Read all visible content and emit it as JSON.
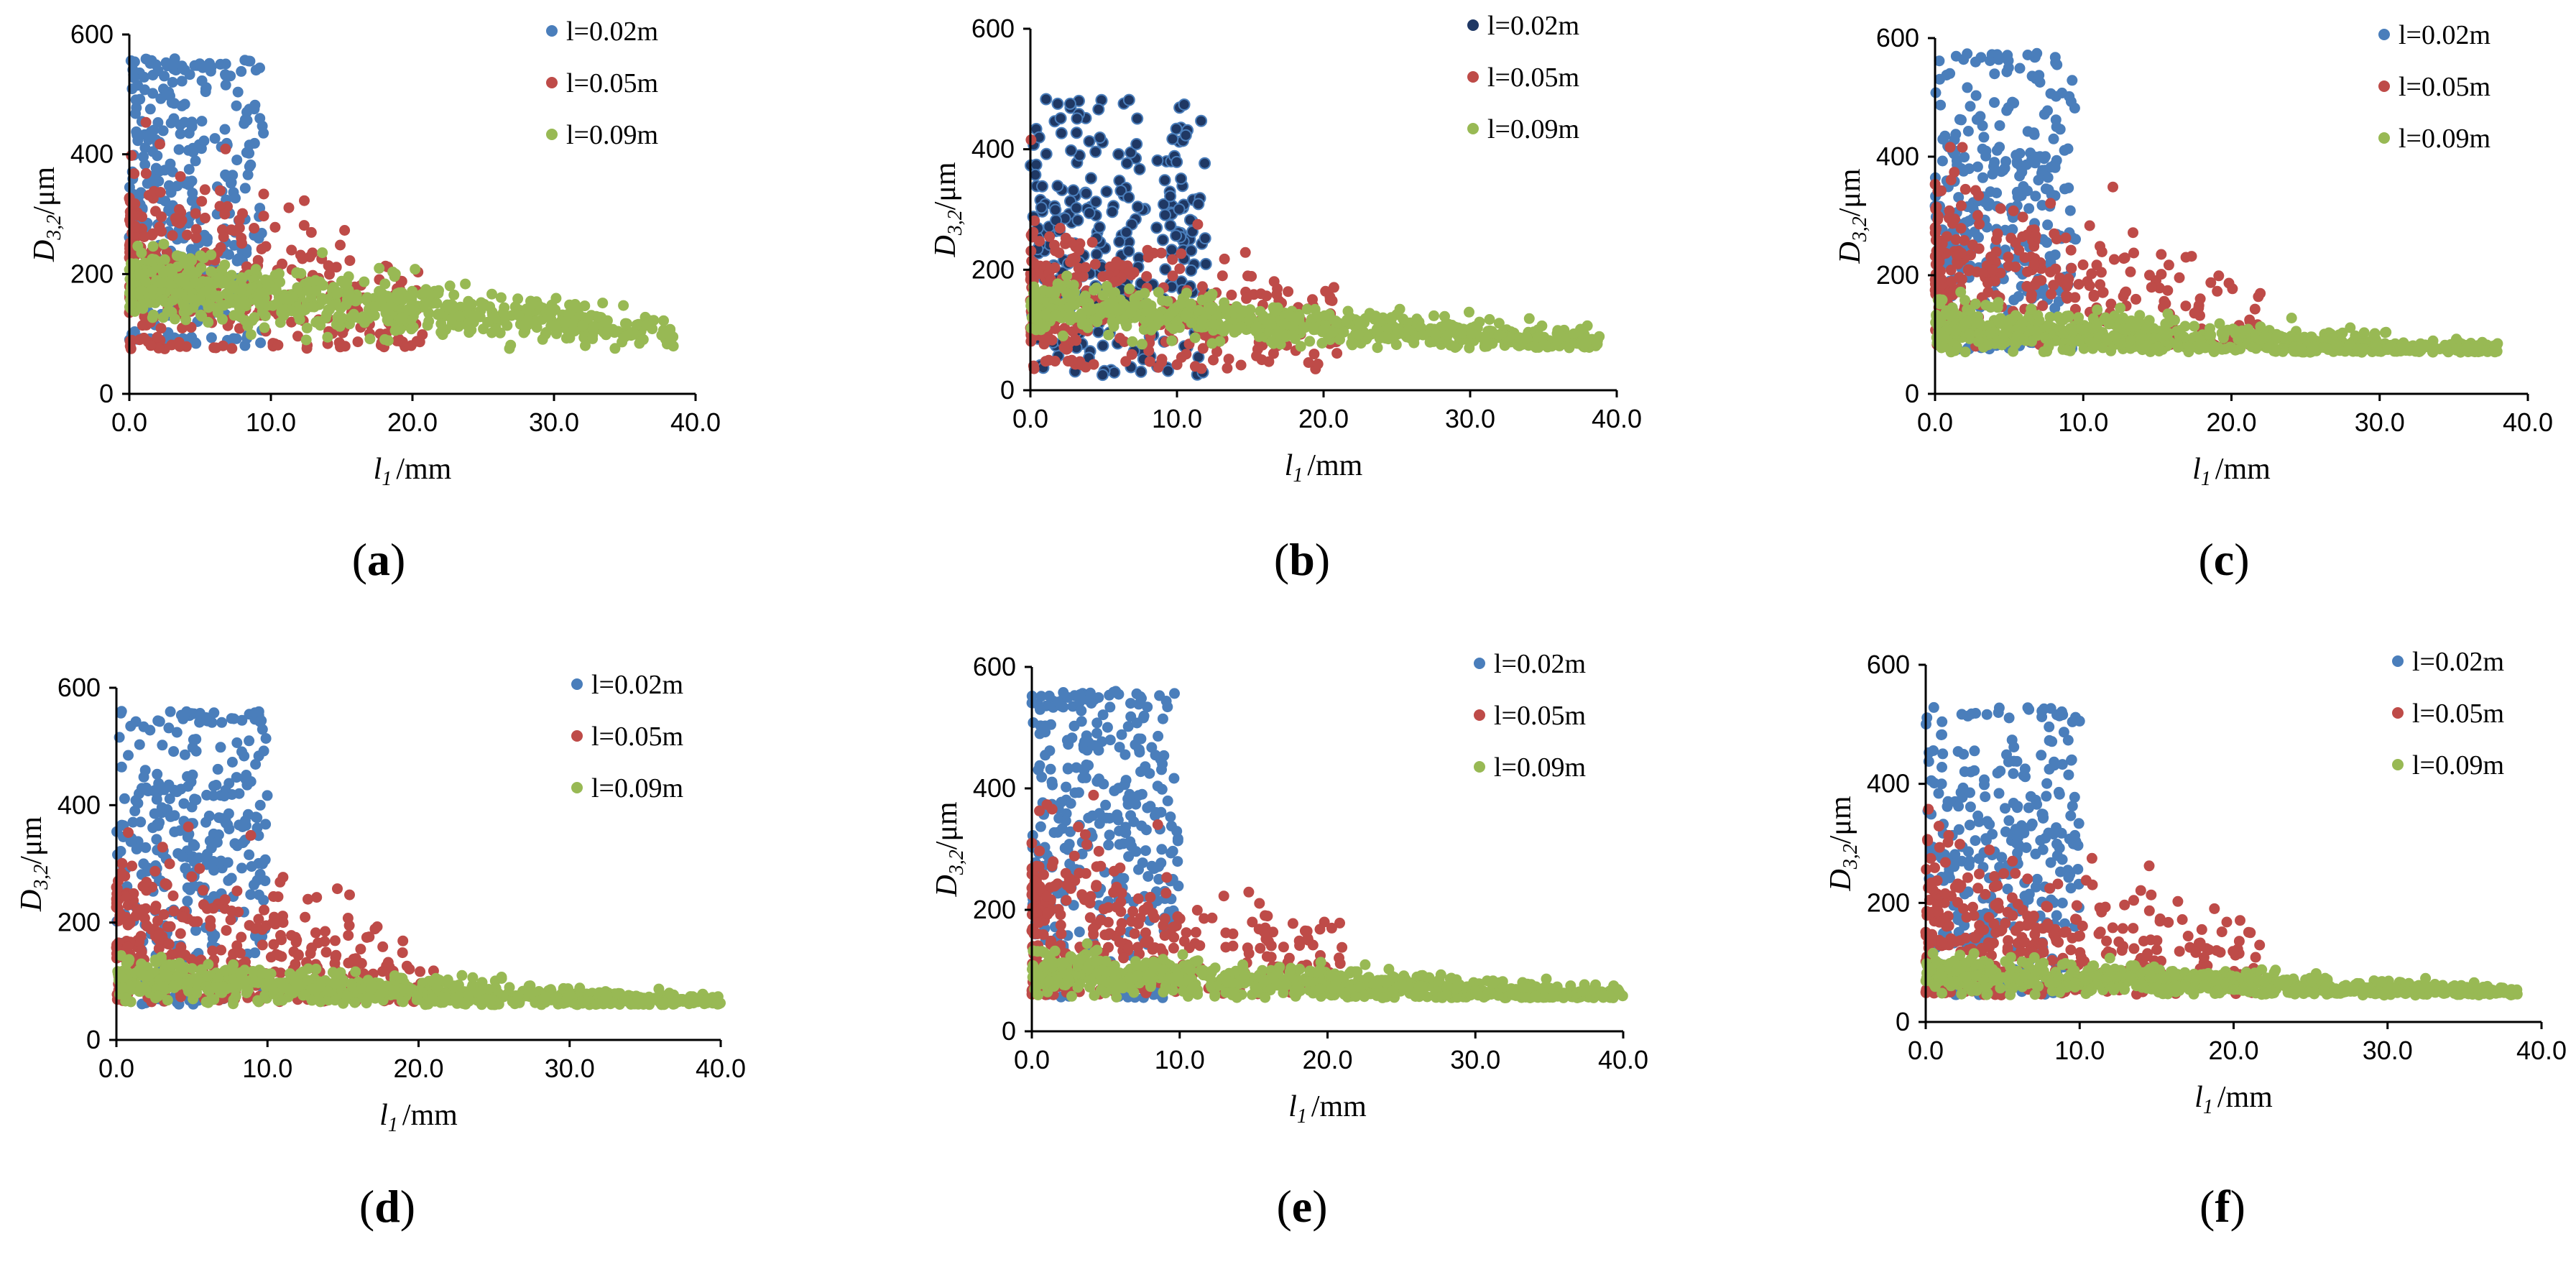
{
  "figure": {
    "panels_order": [
      "a",
      "b",
      "c",
      "d",
      "e",
      "f"
    ]
  },
  "colors": {
    "series_0": "#4a7ebb",
    "series_1": "#be4b48",
    "series_2": "#98b954",
    "series_0_alt": "#1f3864",
    "axis": "#000000",
    "background": "#ffffff"
  },
  "chart_data": [
    {
      "id": "a",
      "caption_open": "(",
      "caption_letter": "a",
      "caption_close": ")",
      "type": "scatter",
      "title": "",
      "xlabel_italic": "l",
      "xlabel_sub": "1",
      "xlabel_unit": "/mm",
      "ylabel_italic": "D",
      "ylabel_sub": "3,2",
      "ylabel_unit": "/μm",
      "xlim": [
        0,
        40
      ],
      "ylim": [
        0,
        600
      ],
      "xticks": [
        0,
        10,
        20,
        30,
        40
      ],
      "xtick_labels": [
        "0.0",
        "10.0",
        "20.0",
        "30.0",
        "40.0"
      ],
      "yticks": [
        0,
        200,
        400,
        600
      ],
      "ytick_labels": [
        "0",
        "200",
        "400",
        "600"
      ],
      "legend_position": "top-right",
      "series": [
        {
          "name": "l=0.02m",
          "color": "#4a7ebb",
          "x_range": [
            0,
            9.5
          ],
          "y_center": 330,
          "y_spread": 170,
          "y_min": 80,
          "y_max": 560,
          "x_decay": 0,
          "n": 320
        },
        {
          "name": "l=0.05m",
          "color": "#be4b48",
          "x_range": [
            0,
            21
          ],
          "y_center": 210,
          "y_spread": 90,
          "y_min": 75,
          "y_max": 520,
          "x_decay": 2.5,
          "n": 320
        },
        {
          "name": "l=0.09m",
          "color": "#98b954",
          "x_range": [
            0,
            38.5
          ],
          "y_center": 185,
          "y_spread": 28,
          "y_min": 75,
          "y_max": 260,
          "x_decay": 0.9,
          "n": 720
        }
      ]
    },
    {
      "id": "b",
      "caption_open": "(",
      "caption_letter": "b",
      "caption_close": ")",
      "type": "scatter",
      "title": "",
      "xlabel_italic": "l",
      "xlabel_sub": "1",
      "xlabel_unit": "/mm",
      "ylabel_italic": "D",
      "ylabel_sub": "3,2",
      "ylabel_unit": "/μm",
      "xlim": [
        0,
        40
      ],
      "ylim": [
        0,
        600
      ],
      "xticks": [
        0,
        10,
        20,
        30,
        40
      ],
      "xtick_labels": [
        "0.0",
        "10.0",
        "20.0",
        "30.0",
        "40.0"
      ],
      "yticks": [
        0,
        200,
        400,
        600
      ],
      "ytick_labels": [
        "0",
        "200",
        "400",
        "600"
      ],
      "legend_position": "top-right",
      "series": [
        {
          "name": "l=0.02m",
          "color": "#1f3864",
          "x_range": [
            0,
            12
          ],
          "y_center": 250,
          "y_spread": 130,
          "y_min": 25,
          "y_max": 485,
          "x_decay": 0,
          "n": 280
        },
        {
          "name": "l=0.05m",
          "color": "#be4b48",
          "x_range": [
            0,
            21
          ],
          "y_center": 165,
          "y_spread": 75,
          "y_min": 35,
          "y_max": 460,
          "x_decay": 2.0,
          "n": 320
        },
        {
          "name": "l=0.09m",
          "color": "#98b954",
          "x_range": [
            0,
            39
          ],
          "y_center": 140,
          "y_spread": 20,
          "y_min": 70,
          "y_max": 230,
          "x_decay": 0.5,
          "n": 720
        }
      ]
    },
    {
      "id": "c",
      "caption_open": "(",
      "caption_letter": "c",
      "caption_close": ")",
      "type": "scatter",
      "title": "",
      "xlabel_italic": "l",
      "xlabel_sub": "1",
      "xlabel_unit": "/mm",
      "ylabel_italic": "D",
      "ylabel_sub": "3,2",
      "ylabel_unit": "/μm",
      "xlim": [
        0,
        40
      ],
      "ylim": [
        0,
        600
      ],
      "xticks": [
        0,
        10,
        20,
        30,
        40
      ],
      "xtick_labels": [
        "0.0",
        "10.0",
        "20.0",
        "30.0",
        "40.0"
      ],
      "yticks": [
        0,
        200,
        400,
        600
      ],
      "ytick_labels": [
        "0",
        "200",
        "400",
        "600"
      ],
      "legend_position": "top-right",
      "series": [
        {
          "name": "l=0.02m",
          "color": "#4a7ebb",
          "x_range": [
            0,
            9.5
          ],
          "y_center": 330,
          "y_spread": 160,
          "y_min": 75,
          "y_max": 575,
          "x_decay": 0,
          "n": 320
        },
        {
          "name": "l=0.05m",
          "color": "#be4b48",
          "x_range": [
            0,
            22
          ],
          "y_center": 200,
          "y_spread": 90,
          "y_min": 80,
          "y_max": 530,
          "x_decay": 2.2,
          "n": 340
        },
        {
          "name": "l=0.09m",
          "color": "#98b954",
          "x_range": [
            0,
            38
          ],
          "y_center": 115,
          "y_spread": 22,
          "y_min": 70,
          "y_max": 340,
          "x_decay": 0.6,
          "n": 720
        }
      ]
    },
    {
      "id": "d",
      "caption_open": "(",
      "caption_letter": "d",
      "caption_close": ")",
      "type": "scatter",
      "title": "",
      "xlabel_italic": "l",
      "xlabel_sub": "1",
      "xlabel_unit": "/mm",
      "ylabel_italic": "D",
      "ylabel_sub": "3,2",
      "ylabel_unit": "/μm",
      "xlim": [
        0,
        40
      ],
      "ylim": [
        0,
        600
      ],
      "xticks": [
        0,
        10,
        20,
        30,
        40
      ],
      "xtick_labels": [
        "0.0",
        "10.0",
        "20.0",
        "30.0",
        "40.0"
      ],
      "yticks": [
        0,
        200,
        400,
        600
      ],
      "ytick_labels": [
        "0",
        "200",
        "400",
        "600"
      ],
      "legend_position": "top-right",
      "series": [
        {
          "name": "l=0.02m",
          "color": "#4a7ebb",
          "x_range": [
            0,
            10
          ],
          "y_center": 330,
          "y_spread": 160,
          "y_min": 60,
          "y_max": 560,
          "x_decay": 0,
          "n": 320
        },
        {
          "name": "l=0.05m",
          "color": "#be4b48",
          "x_range": [
            0,
            21
          ],
          "y_center": 180,
          "y_spread": 80,
          "y_min": 65,
          "y_max": 460,
          "x_decay": 2.2,
          "n": 340
        },
        {
          "name": "l=0.09m",
          "color": "#98b954",
          "x_range": [
            0,
            40
          ],
          "y_center": 105,
          "y_spread": 18,
          "y_min": 60,
          "y_max": 310,
          "x_decay": 0.5,
          "n": 720
        }
      ]
    },
    {
      "id": "e",
      "caption_open": "(",
      "caption_letter": "e",
      "caption_close": ")",
      "type": "scatter",
      "title": "",
      "xlabel_italic": "l",
      "xlabel_sub": "1",
      "xlabel_unit": "/mm",
      "ylabel_italic": "D",
      "ylabel_sub": "3,2",
      "ylabel_unit": "/μm",
      "xlim": [
        0,
        40
      ],
      "ylim": [
        0,
        600
      ],
      "xticks": [
        0,
        10,
        20,
        30,
        40
      ],
      "xtick_labels": [
        "0.0",
        "10.0",
        "20.0",
        "30.0",
        "40.0"
      ],
      "yticks": [
        0,
        200,
        400,
        600
      ],
      "ytick_labels": [
        "0",
        "200",
        "400",
        "600"
      ],
      "legend_position": "top-right",
      "series": [
        {
          "name": "l=0.02m",
          "color": "#4a7ebb",
          "x_range": [
            0,
            10
          ],
          "y_center": 330,
          "y_spread": 160,
          "y_min": 55,
          "y_max": 560,
          "x_decay": 0,
          "n": 320
        },
        {
          "name": "l=0.05m",
          "color": "#be4b48",
          "x_range": [
            0,
            21
          ],
          "y_center": 180,
          "y_spread": 80,
          "y_min": 60,
          "y_max": 455,
          "x_decay": 2.2,
          "n": 340
        },
        {
          "name": "l=0.09m",
          "color": "#98b954",
          "x_range": [
            0,
            40
          ],
          "y_center": 100,
          "y_spread": 18,
          "y_min": 55,
          "y_max": 350,
          "x_decay": 0.5,
          "n": 720
        }
      ]
    },
    {
      "id": "f",
      "caption_open": "(",
      "caption_letter": "f",
      "caption_close": ")",
      "type": "scatter",
      "title": "",
      "xlabel_italic": "l",
      "xlabel_sub": "1",
      "xlabel_unit": "/mm",
      "ylabel_italic": "D",
      "ylabel_sub": "3,2",
      "ylabel_unit": "/μm",
      "xlim": [
        0,
        40
      ],
      "ylim": [
        0,
        600
      ],
      "xticks": [
        0,
        10,
        20,
        30,
        40
      ],
      "xtick_labels": [
        "0.0",
        "10.0",
        "20.0",
        "30.0",
        "40.0"
      ],
      "yticks": [
        0,
        200,
        400,
        600
      ],
      "ytick_labels": [
        "0",
        "200",
        "400",
        "600"
      ],
      "legend_position": "top-right",
      "series": [
        {
          "name": "l=0.02m",
          "color": "#4a7ebb",
          "x_range": [
            0,
            10
          ],
          "y_center": 280,
          "y_spread": 150,
          "y_min": 45,
          "y_max": 530,
          "x_decay": 0,
          "n": 320
        },
        {
          "name": "l=0.05m",
          "color": "#be4b48",
          "x_range": [
            0,
            22
          ],
          "y_center": 160,
          "y_spread": 75,
          "y_min": 45,
          "y_max": 440,
          "x_decay": 2.0,
          "n": 340
        },
        {
          "name": "l=0.09m",
          "color": "#98b954",
          "x_range": [
            0,
            38.5
          ],
          "y_center": 82,
          "y_spread": 15,
          "y_min": 45,
          "y_max": 335,
          "x_decay": 0.4,
          "n": 720
        }
      ]
    }
  ]
}
